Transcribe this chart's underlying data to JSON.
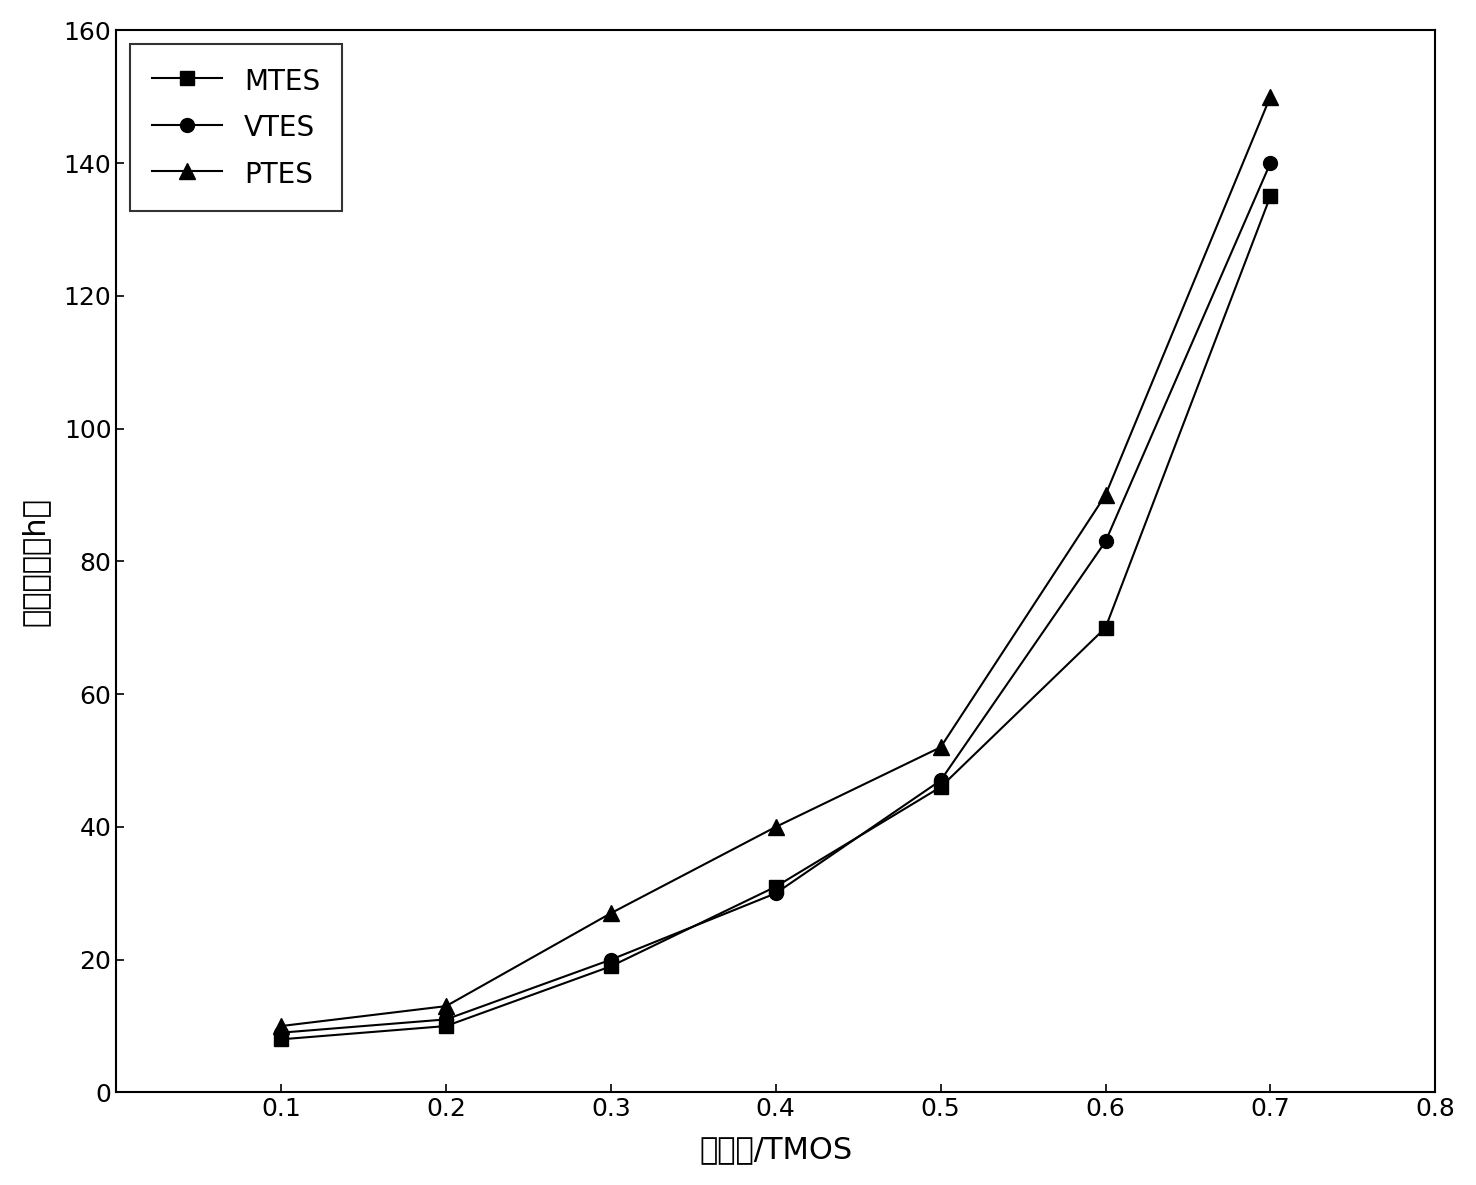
{
  "x": [
    0.1,
    0.2,
    0.3,
    0.4,
    0.5,
    0.6,
    0.7
  ],
  "MTES": [
    8,
    10,
    19,
    31,
    46,
    70,
    135
  ],
  "VTES": [
    9,
    11,
    20,
    30,
    47,
    83,
    140
  ],
  "PTES": [
    10,
    13,
    27,
    40,
    52,
    90,
    150
  ],
  "xlim": [
    0.0,
    0.8
  ],
  "ylim": [
    0,
    160
  ],
  "xticks": [
    0.1,
    0.2,
    0.3,
    0.4,
    0.5,
    0.6,
    0.7,
    0.8
  ],
  "yticks": [
    0,
    20,
    40,
    60,
    80,
    100,
    120,
    140,
    160
  ],
  "xlabel": "改性剑/TMOS",
  "ylabel": "撸胶时间（h）",
  "line_color": "#000000",
  "bg_color": "#ffffff",
  "legend_MTES": "MTES",
  "legend_VTES": "VTES",
  "legend_PTES": "PTES"
}
